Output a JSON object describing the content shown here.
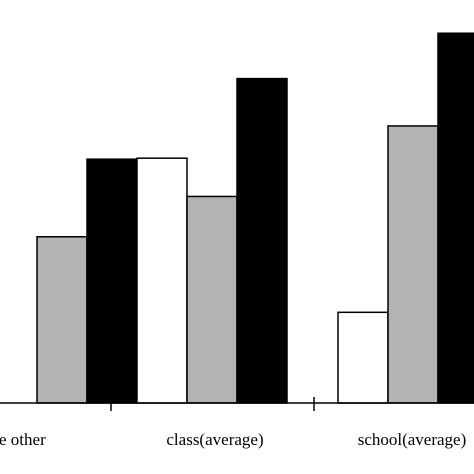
{
  "chart_data": {
    "type": "bar",
    "categories": [
      "le other",
      "class(average)",
      "school(average)"
    ],
    "series": [
      {
        "values": [
          null,
          243,
          90
        ],
        "color": "#ffffff"
      },
      {
        "values": [
          165,
          205,
          275
        ],
        "color": "#b3b3b3"
      },
      {
        "values": [
          242,
          322,
          367
        ],
        "color": "#000000"
      }
    ],
    "ylim": [
      0,
      400
    ],
    "title": "",
    "xlabel": "",
    "ylabel": "",
    "grid": false,
    "legend": "none"
  }
}
